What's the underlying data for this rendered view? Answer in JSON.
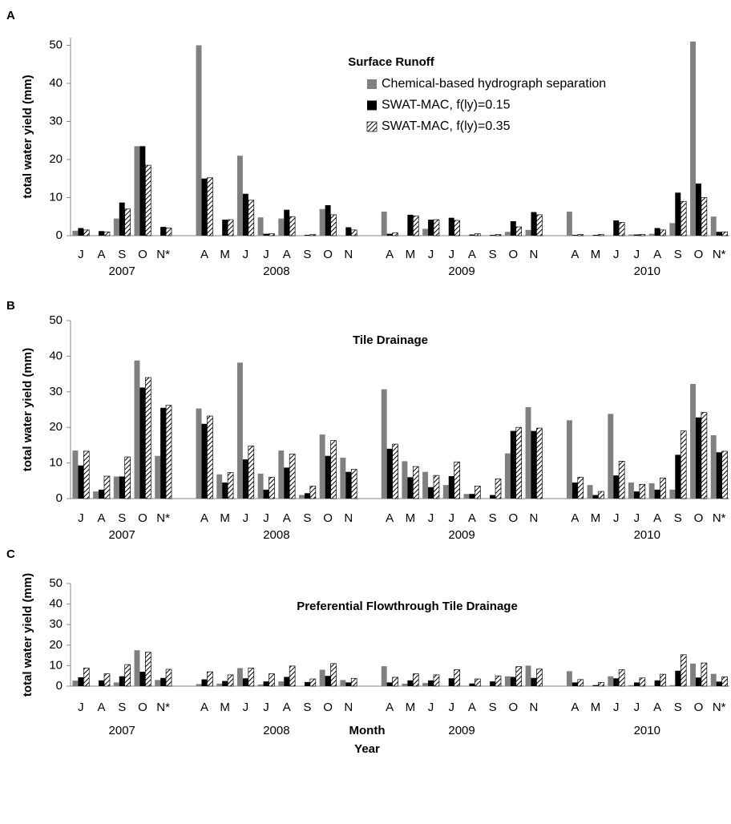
{
  "chart_data": [
    {
      "type": "bar",
      "panel_label": "A",
      "title": "Surface Runoff",
      "ylabel": "total water yield (mm)",
      "legend": true,
      "categories": [
        "J",
        "A",
        "S",
        "O",
        "N*",
        null,
        "A",
        "M",
        "J",
        "J",
        "A",
        "S",
        "O",
        "N",
        null,
        "A",
        "M",
        "J",
        "J",
        "A",
        "S",
        "O",
        "N",
        null,
        "A",
        "M",
        "J",
        "J",
        "A",
        "S",
        "O",
        "N*"
      ],
      "x_group_labels": [
        "2007",
        "2008",
        "2009",
        "2010"
      ],
      "ylim": [
        0,
        52
      ],
      "yticks": [
        0,
        10,
        20,
        30,
        40,
        50
      ],
      "series": [
        {
          "name": "Chemical-based hydrograph separation",
          "color": "#808080",
          "values": [
            1.3,
            0,
            4.5,
            23.5,
            0,
            null,
            50,
            0,
            21,
            4.8,
            4.5,
            0,
            7,
            0,
            null,
            6.3,
            0,
            1.8,
            0,
            0,
            0,
            1,
            1.5,
            null,
            6.3,
            0,
            0,
            0.3,
            0.5,
            3.3,
            51,
            5
          ]
        },
        {
          "name": "SWAT-MAC, f(ly)=0.15",
          "color": "#000000",
          "values": [
            2,
            1.2,
            8.7,
            23.5,
            2.3,
            null,
            15,
            4.2,
            11,
            0.5,
            6.8,
            0.2,
            8,
            2.2,
            null,
            0.5,
            5.5,
            4.2,
            4.7,
            0.3,
            0.2,
            3.8,
            6.2,
            null,
            0.2,
            0.2,
            4,
            0.3,
            2,
            11.3,
            13.7,
            1
          ]
        },
        {
          "name": "SWAT-MAC, f(ly)=0.35",
          "color": "#000000",
          "pattern": "hatch",
          "values": [
            1.5,
            1,
            7,
            18.5,
            2,
            null,
            15.2,
            4.2,
            9.3,
            0.5,
            5,
            0.3,
            5.5,
            1.5,
            null,
            0.7,
            5.2,
            4.2,
            4,
            0.5,
            0.3,
            2.3,
            5.5,
            null,
            0.3,
            0.3,
            3.5,
            0.3,
            1.5,
            9,
            10,
            1
          ]
        }
      ]
    },
    {
      "type": "bar",
      "panel_label": "B",
      "title": "Tile Drainage",
      "ylabel": "total water yield (mm)",
      "legend": false,
      "categories": [
        "J",
        "A",
        "S",
        "O",
        "N*",
        null,
        "A",
        "M",
        "J",
        "J",
        "A",
        "S",
        "O",
        "N",
        null,
        "A",
        "M",
        "J",
        "J",
        "A",
        "S",
        "O",
        "N",
        null,
        "A",
        "M",
        "J",
        "J",
        "A",
        "S",
        "O",
        "N*"
      ],
      "x_group_labels": [
        "2007",
        "2008",
        "2009",
        "2010"
      ],
      "ylim": [
        0,
        50
      ],
      "yticks": [
        0,
        10,
        20,
        30,
        40,
        50
      ],
      "series": [
        {
          "color": "#808080",
          "values": [
            13.5,
            2,
            6.2,
            38.8,
            12,
            null,
            25.3,
            6.8,
            38.2,
            7,
            13.5,
            1,
            18,
            11.5,
            null,
            30.7,
            10.5,
            7.5,
            3.8,
            1.3,
            0,
            12.7,
            25.7,
            null,
            22,
            3.8,
            23.8,
            4.5,
            4.3,
            2.5,
            32.2,
            17.8
          ]
        },
        {
          "color": "#000000",
          "values": [
            9.3,
            2.5,
            6.2,
            31.2,
            25.5,
            null,
            21,
            4.5,
            11,
            2.5,
            8.7,
            1.5,
            12,
            7.5,
            null,
            14,
            6,
            3.2,
            6.3,
            1.3,
            1,
            19,
            19,
            null,
            4.5,
            1,
            6.5,
            2,
            2.5,
            12.3,
            22.8,
            13
          ]
        },
        {
          "color": "#000000",
          "pattern": "hatch",
          "values": [
            13.3,
            6.3,
            11.7,
            34,
            26.2,
            null,
            23.2,
            7.3,
            14.8,
            6,
            12.5,
            3.5,
            16.3,
            8.2,
            null,
            15.3,
            9,
            6.5,
            10.3,
            3.5,
            5.5,
            20,
            19.8,
            null,
            6,
            2,
            10.5,
            4,
            5.8,
            19,
            24.2,
            13.3
          ]
        }
      ]
    },
    {
      "type": "bar",
      "panel_label": "C",
      "title": "Preferential Flowthrough Tile Drainage",
      "ylabel": "total water yield (mm)",
      "legend": false,
      "xlabel": "Month",
      "xlabel2": "Year",
      "categories": [
        "J",
        "A",
        "S",
        "O",
        "N*",
        null,
        "A",
        "M",
        "J",
        "J",
        "A",
        "S",
        "O",
        "N",
        null,
        "A",
        "M",
        "J",
        "J",
        "A",
        "S",
        "O",
        "N",
        null,
        "A",
        "M",
        "J",
        "J",
        "A",
        "S",
        "O",
        "N*"
      ],
      "x_group_labels": [
        "2007",
        "2008",
        "2009",
        "2010"
      ],
      "ylim": [
        0,
        50
      ],
      "yticks": [
        0,
        10,
        20,
        30,
        40,
        50
      ],
      "series": [
        {
          "color": "#808080",
          "values": [
            2.7,
            0,
            1.8,
            17.5,
            3,
            null,
            1,
            1.2,
            8.8,
            0.8,
            2.3,
            0,
            8,
            3,
            null,
            9.7,
            1.2,
            1.5,
            0,
            0,
            0,
            4.8,
            10,
            null,
            7.3,
            0,
            4.8,
            0.5,
            0,
            0.5,
            11,
            6
          ]
        },
        {
          "color": "#000000",
          "values": [
            4.3,
            2.8,
            4.8,
            7,
            4,
            null,
            3.3,
            2.5,
            3.8,
            2.3,
            4.5,
            2,
            5,
            1.8,
            null,
            1.8,
            2.8,
            2.8,
            3.8,
            1.3,
            2.3,
            4.5,
            4,
            null,
            1.8,
            0.5,
            3.8,
            1.8,
            2.8,
            7.5,
            4.2,
            2.2
          ]
        },
        {
          "color": "#000000",
          "pattern": "hatch",
          "values": [
            8.8,
            6,
            10.5,
            16.5,
            8.2,
            null,
            7,
            5.5,
            8.8,
            6,
            9.8,
            3.5,
            11,
            3.8,
            null,
            4.3,
            6,
            5.5,
            8,
            3.5,
            5,
            9.5,
            8.3,
            null,
            3.2,
            1.8,
            8,
            4,
            5.8,
            15.3,
            11.3,
            4.5
          ]
        }
      ]
    }
  ]
}
